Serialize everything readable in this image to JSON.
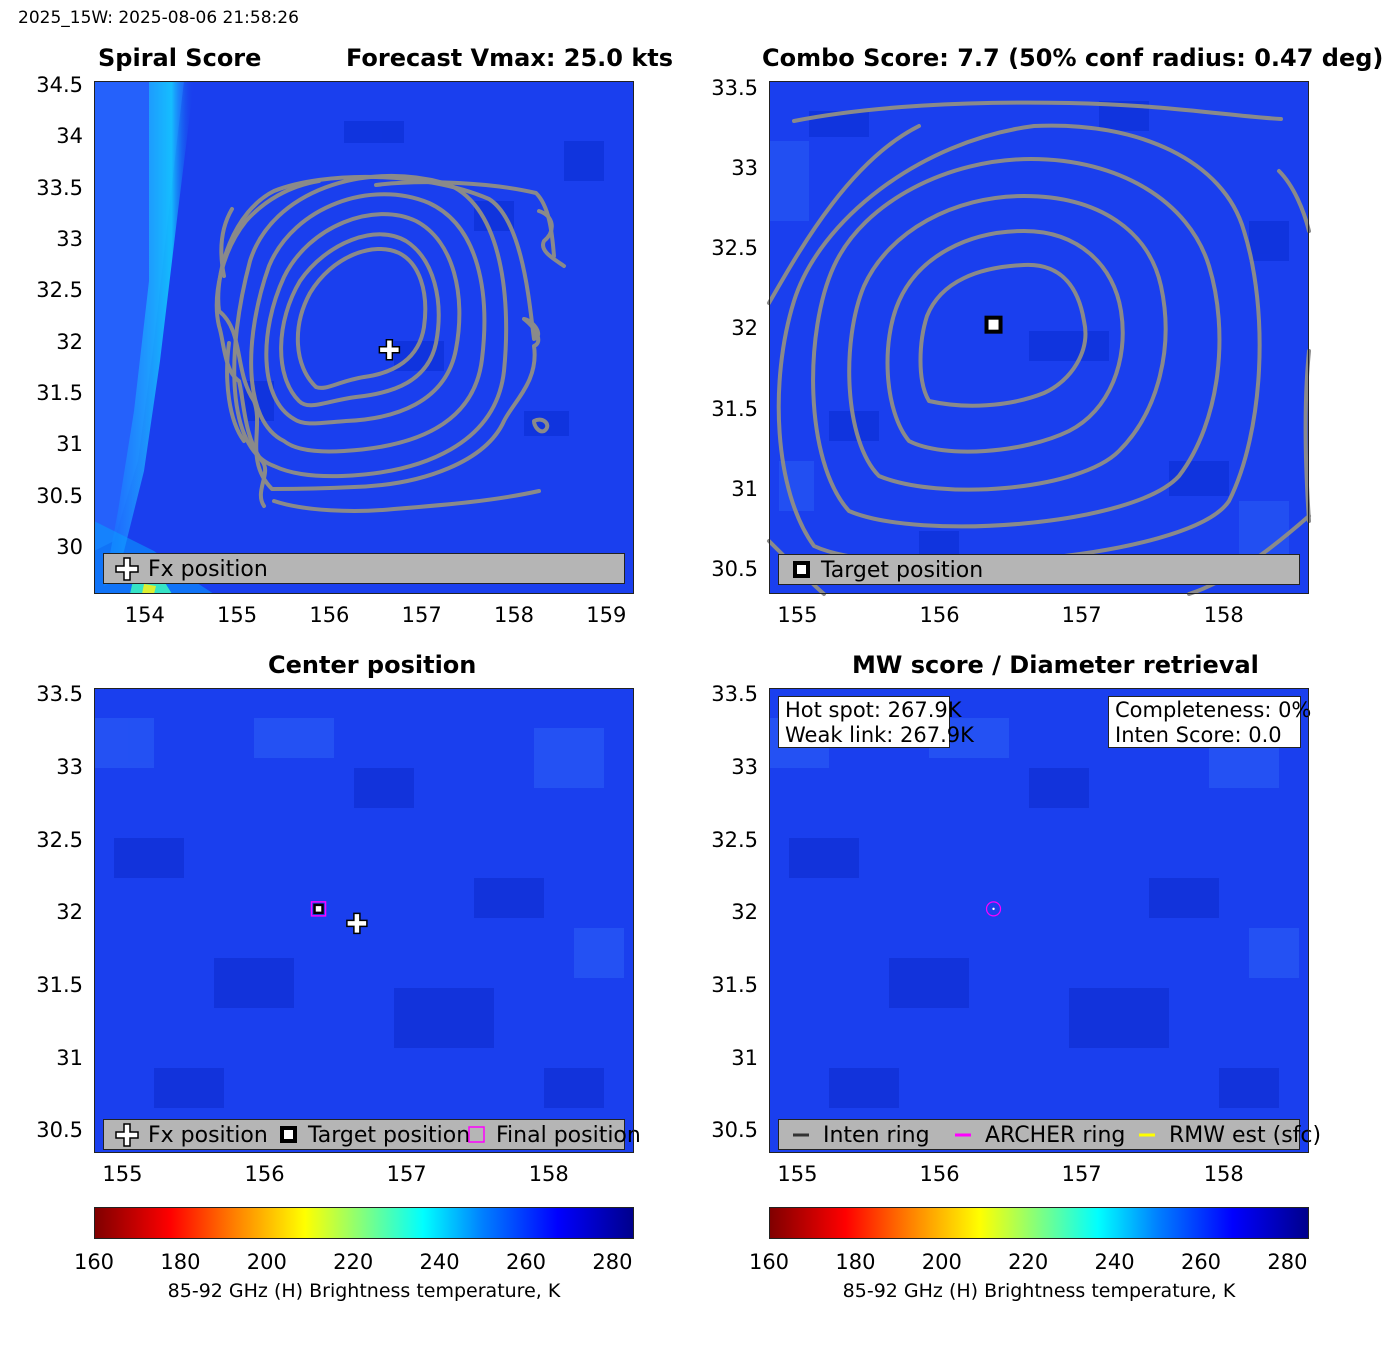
{
  "page_title": "2025_15W: 2025-08-06 21:58:26",
  "colors": {
    "contour": "#8a8a8a",
    "legend_bg": "#b5b5b5",
    "field_base": "#1a3fee",
    "magenta": "#ff00ff",
    "yellow": "#ffff00"
  },
  "panels": {
    "spiral": {
      "title_left": "Spiral Score",
      "title_right": "Forecast Vmax: 25.0 kts",
      "legend": [
        "Fx position"
      ]
    },
    "combo": {
      "title": "Combo Score: 7.7  (50% conf radius: 0.47 deg)",
      "legend": [
        "Target position"
      ]
    },
    "center": {
      "title": "Center position",
      "legend": [
        "Fx position",
        "Target position",
        "Final position"
      ]
    },
    "mw": {
      "title": "MW score / Diameter retrieval",
      "info_left": [
        "Hot spot: 267.9K",
        "Weak link: 267.9K"
      ],
      "info_right": [
        "Completeness: 0%",
        "Inten Score: 0.0"
      ],
      "legend": [
        "Inten ring",
        "ARCHER ring",
        "RMW est (sfc)"
      ]
    }
  },
  "chart_data": [
    {
      "type": "heatmap",
      "panel": "Spiral Score",
      "title": "Spiral Score",
      "subtitle": "Forecast Vmax: 25.0 kts",
      "xlim": [
        153.45,
        159.3
      ],
      "ylim": [
        29.55,
        34.55
      ],
      "xticks": [
        "154",
        "155",
        "156",
        "157",
        "158",
        "159"
      ],
      "yticks": [
        "34.5",
        "34",
        "33.5",
        "33",
        "32.5",
        "32",
        "31.5",
        "31",
        "30.5",
        "30"
      ],
      "markers": [
        {
          "name": "Fx position",
          "x": 156.65,
          "y": 31.93
        }
      ]
    },
    {
      "type": "heatmap",
      "panel": "Combo Score",
      "title": "Combo Score: 7.7  (50% conf radius: 0.47 deg)",
      "xlim": [
        154.8,
        158.6
      ],
      "ylim": [
        30.35,
        33.55
      ],
      "xticks": [
        "155",
        "156",
        "157",
        "158"
      ],
      "yticks": [
        "33.5",
        "33",
        "32.5",
        "32",
        "31.5",
        "31",
        "30.5"
      ],
      "markers": [
        {
          "name": "Target position",
          "x": 156.38,
          "y": 32.03
        }
      ]
    },
    {
      "type": "heatmap",
      "panel": "Center position",
      "title": "Center position",
      "xlim": [
        154.8,
        158.6
      ],
      "ylim": [
        30.35,
        33.55
      ],
      "xticks": [
        "155",
        "156",
        "157",
        "158"
      ],
      "yticks": [
        "33.5",
        "33",
        "32.5",
        "32",
        "31.5",
        "31",
        "30.5"
      ],
      "markers": [
        {
          "name": "Fx position",
          "x": 156.65,
          "y": 31.93
        },
        {
          "name": "Target position",
          "x": 156.38,
          "y": 32.03
        },
        {
          "name": "Final position",
          "x": 156.38,
          "y": 32.03
        }
      ]
    },
    {
      "type": "heatmap",
      "panel": "MW score / Diameter retrieval",
      "title": "MW score / Diameter retrieval",
      "xlim": [
        154.8,
        158.6
      ],
      "ylim": [
        30.35,
        33.55
      ],
      "xticks": [
        "155",
        "156",
        "157",
        "158"
      ],
      "yticks": [
        "33.5",
        "33",
        "32.5",
        "32",
        "31.5",
        "31",
        "30.5"
      ],
      "markers": [
        {
          "name": "ARCHER ring",
          "x": 156.38,
          "y": 32.03
        }
      ]
    }
  ],
  "colorbars": [
    {
      "ticks": [
        "160",
        "180",
        "200",
        "220",
        "240",
        "260",
        "280"
      ],
      "range": [
        160,
        285
      ],
      "label": "85-92 GHz (H) Brightness temperature, K"
    },
    {
      "ticks": [
        "160",
        "180",
        "200",
        "220",
        "240",
        "260",
        "280"
      ],
      "range": [
        160,
        285
      ],
      "label": "85-92 GHz (H) Brightness temperature, K"
    }
  ]
}
